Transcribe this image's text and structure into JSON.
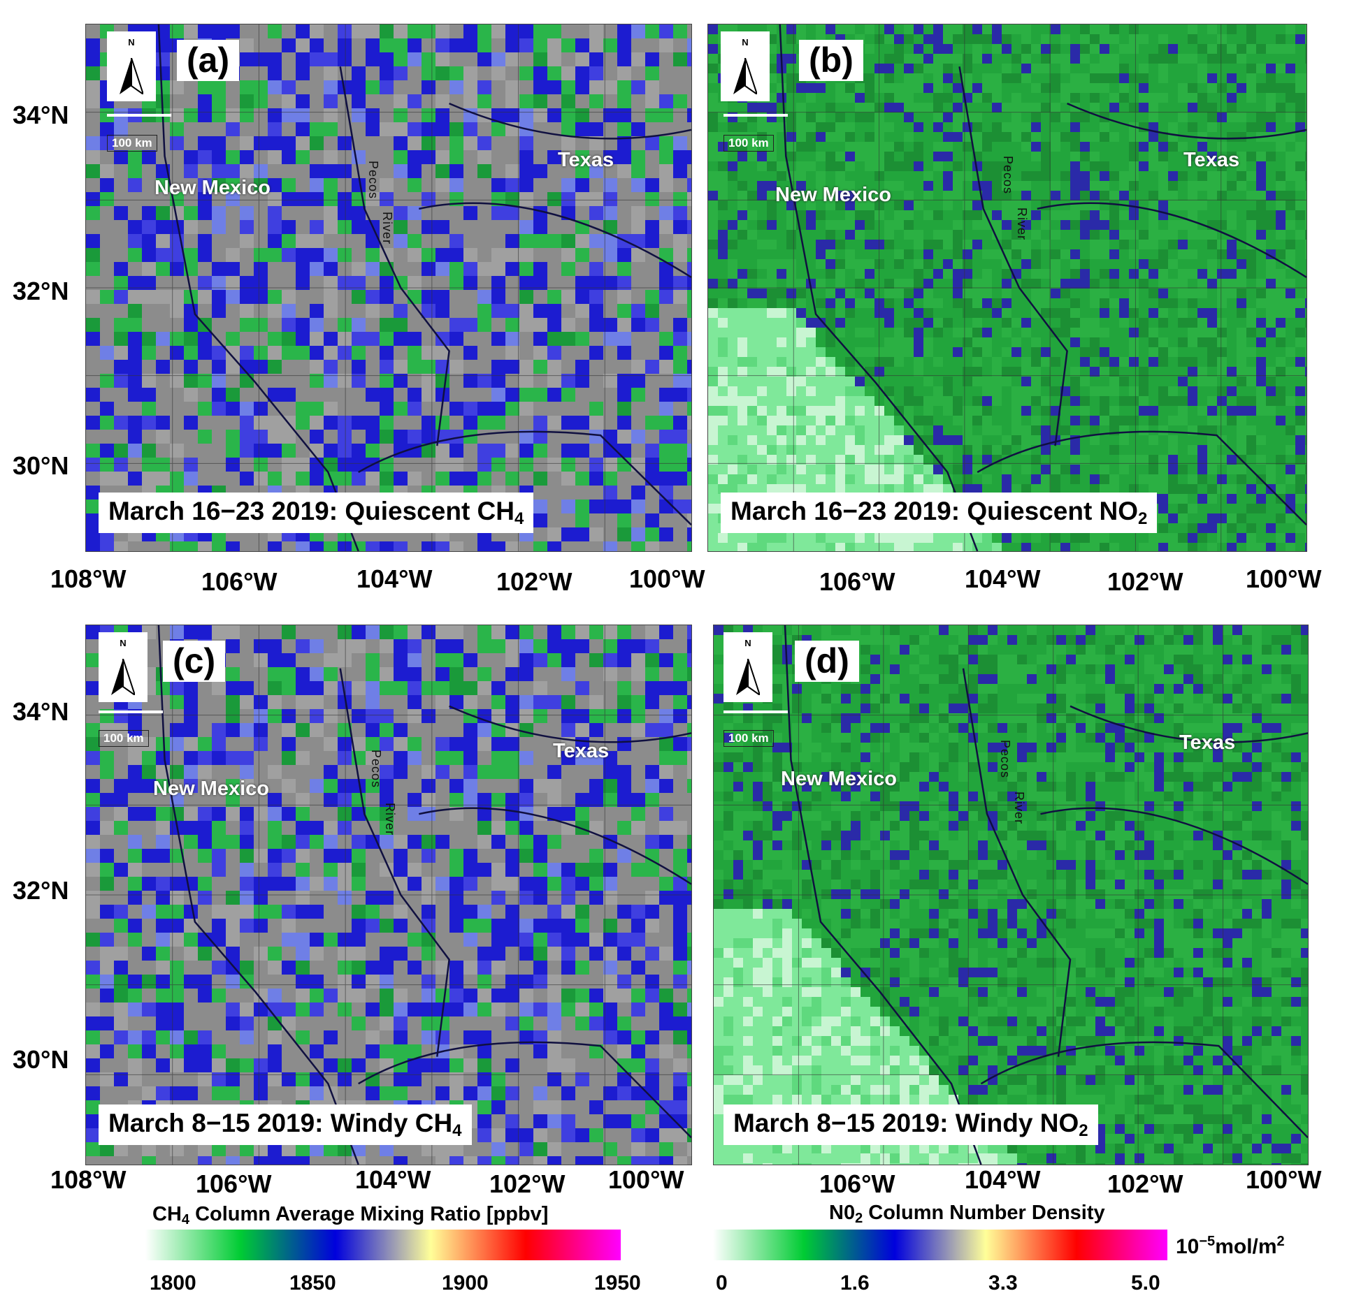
{
  "panels": [
    {
      "id": "a",
      "label": "(a)",
      "north_letter": "N",
      "scale_label": "100 km",
      "state_nm": "New Mexico",
      "state_tx": "Texas",
      "river_pecos": "Pecos",
      "river_river": "River",
      "caption_main": "March 16−23 2019: Quiescent CH",
      "caption_sub": "4",
      "variable": "CH4"
    },
    {
      "id": "b",
      "label": "(b)",
      "north_letter": "N",
      "scale_label": "100 km",
      "state_nm": "New Mexico",
      "state_tx": "Texas",
      "river_pecos": "Pecos",
      "river_river": "River",
      "caption_main": "March 16−23 2019: Quiescent NO",
      "caption_sub": "2",
      "variable": "NO2"
    },
    {
      "id": "c",
      "label": "(c)",
      "north_letter": "N",
      "scale_label": "100 km",
      "state_nm": "New Mexico",
      "state_tx": "Texas",
      "river_pecos": "Pecos",
      "river_river": "River",
      "caption_main": "March 8−15 2019: Windy CH",
      "caption_sub": "4",
      "variable": "CH4"
    },
    {
      "id": "d",
      "label": "(d)",
      "north_letter": "N",
      "scale_label": "100 km",
      "state_nm": "New Mexico",
      "state_tx": "Texas",
      "river_pecos": "Pecos",
      "river_river": "River",
      "caption_main": "March 8−15 2019: Windy NO",
      "caption_sub": "2",
      "variable": "NO2"
    }
  ],
  "lat_labels": [
    "34°N",
    "32°N",
    "30°N"
  ],
  "lon_labels_left": [
    "108°W",
    "106°W",
    "104°W",
    "102°W",
    "100°W"
  ],
  "lon_labels_right": [
    "106°W",
    "104°W",
    "102°W",
    "100°W"
  ],
  "colorbar_ch4": {
    "title_pre": "CH",
    "title_sub": "4",
    "title_post": " Column Average Mixing Ratio [ppbv]",
    "ticks": [
      "1800",
      "1850",
      "1900",
      "1950"
    ],
    "colors": [
      "#ffffff",
      "#00cc33",
      "#0000dd",
      "#ffff99",
      "#ff0000",
      "#ff00ff"
    ]
  },
  "colorbar_no2": {
    "title_pre": "N0",
    "title_sub": "2",
    "title_post": " Column Number Density",
    "ticks": [
      "0",
      "1.6",
      "3.3",
      "5.0"
    ],
    "units_pre": "10",
    "units_sup": "−5",
    "units_post": "mol/m",
    "units_sup2": "2",
    "colors": [
      "#ffffff",
      "#00cc33",
      "#0000dd",
      "#ffff99",
      "#ff0000",
      "#ff00ff"
    ]
  }
}
